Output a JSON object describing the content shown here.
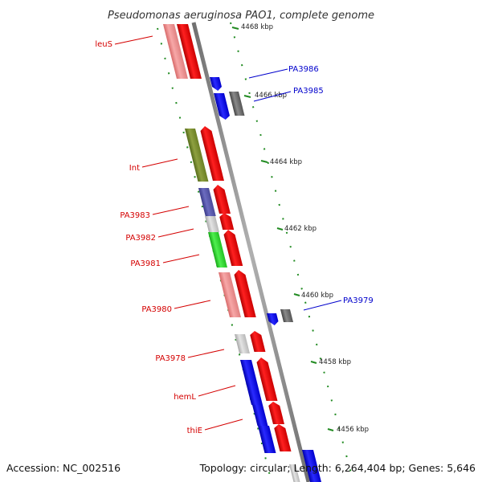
{
  "title": "Pseudomonas aeruginosa PAO1, complete genome",
  "footer": {
    "accession": "Accession: NC_002516",
    "summary": "Topology: circular; Length: 6,264,404 bp; Genes: 5,646"
  },
  "ticks": [
    "4468 kbp",
    "4466 kbp",
    "4464 kbp",
    "4462 kbp",
    "4460 kbp",
    "4458 kbp",
    "4456 kbp"
  ],
  "gene_labels": {
    "left": [
      "leuS",
      "Int",
      "PA3983",
      "PA3982",
      "PA3981",
      "PA3980",
      "PA3978",
      "hemL",
      "thiE"
    ],
    "right": [
      "PA3986",
      "PA3985",
      "PA3979"
    ]
  },
  "colors": {
    "forward_strand": "#ff0000",
    "reverse_strand": "#0000ff",
    "label_left": "#d40000",
    "label_right": "#0000cc",
    "ticks": "#228B22"
  }
}
